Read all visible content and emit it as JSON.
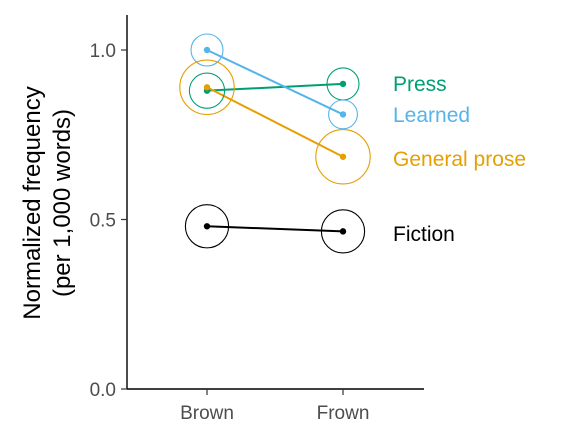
{
  "chart_data": {
    "type": "line",
    "title": "",
    "xlabel": "",
    "ylabel": "Normalized frequency",
    "ylabel_sub": "(per 1,000 words)",
    "categories": [
      "Brown",
      "Frown"
    ],
    "ylim": [
      0,
      1.1
    ],
    "yticks": [
      "0.0",
      "0.5",
      "1.0"
    ],
    "ytick_values": [
      0,
      0.5,
      1.0
    ],
    "grid": false,
    "legend": "direct labels at right",
    "series": [
      {
        "name": "Press",
        "values": [
          0.88,
          0.9
        ],
        "circle": [
          1.1,
          1.0
        ],
        "color": "#009E73"
      },
      {
        "name": "Learned",
        "values": [
          1.0,
          0.81
        ],
        "circle": [
          1.0,
          0.9
        ],
        "color": "#56B4E9"
      },
      {
        "name": "General prose",
        "values": [
          0.89,
          0.685
        ],
        "circle": [
          1.7,
          1.7
        ],
        "color": "#E69F00"
      },
      {
        "name": "Fiction",
        "values": [
          0.48,
          0.465
        ],
        "circle": [
          1.35,
          1.35
        ],
        "color": "#000000"
      }
    ]
  }
}
